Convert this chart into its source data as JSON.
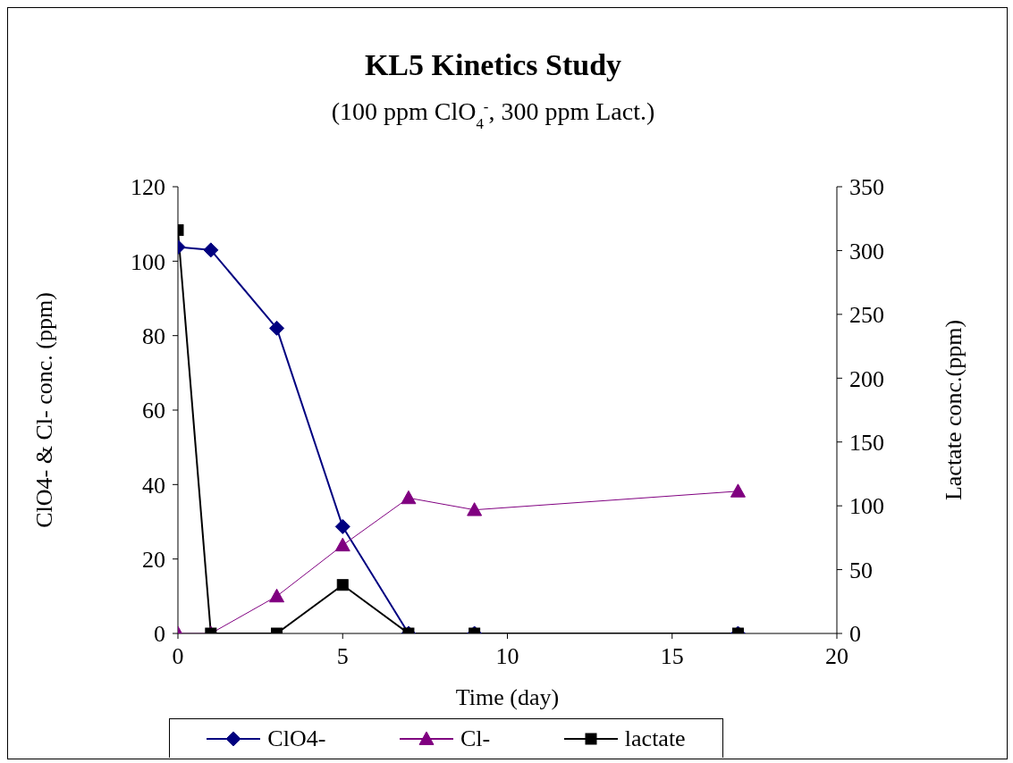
{
  "chart_data": {
    "type": "line",
    "title": "KL5 Kinetics Study",
    "subtitle": "(100 ppm ClO$_{4}$$^{-}$, 300 ppm Lact.)",
    "xlabel": "Time (day)",
    "ylabel": "ClO4- & Cl- conc. (ppm)",
    "y2label": "Lactate conc.(ppm)",
    "x": [
      0,
      1,
      3,
      5,
      7,
      9,
      17
    ],
    "series": [
      {
        "name": "ClO4-",
        "color": "#000080",
        "marker": "diamond",
        "values": [
          103.8,
          103,
          82,
          28.7,
          0,
          0,
          0
        ]
      },
      {
        "name": "Cl-",
        "color": "#800080",
        "marker": "triangle",
        "values": [
          0,
          0,
          10,
          23.7,
          36.4,
          33.2,
          38.2
        ]
      },
      {
        "name": "lactate",
        "color": "#000000",
        "marker": "square",
        "axis": "y2",
        "values": [
          316,
          0,
          0,
          38,
          0,
          0,
          0
        ]
      }
    ],
    "xlim": [
      0,
      20
    ],
    "xticks": [
      0,
      5,
      10,
      15,
      20
    ],
    "ylim": [
      0,
      120
    ],
    "yticks": [
      0,
      20,
      40,
      60,
      80,
      100,
      120
    ],
    "y2lim": [
      0,
      350
    ],
    "y2ticks": [
      0,
      50,
      100,
      150,
      200,
      250,
      300,
      350
    ],
    "legend": "bottom",
    "line_style": "solid"
  }
}
